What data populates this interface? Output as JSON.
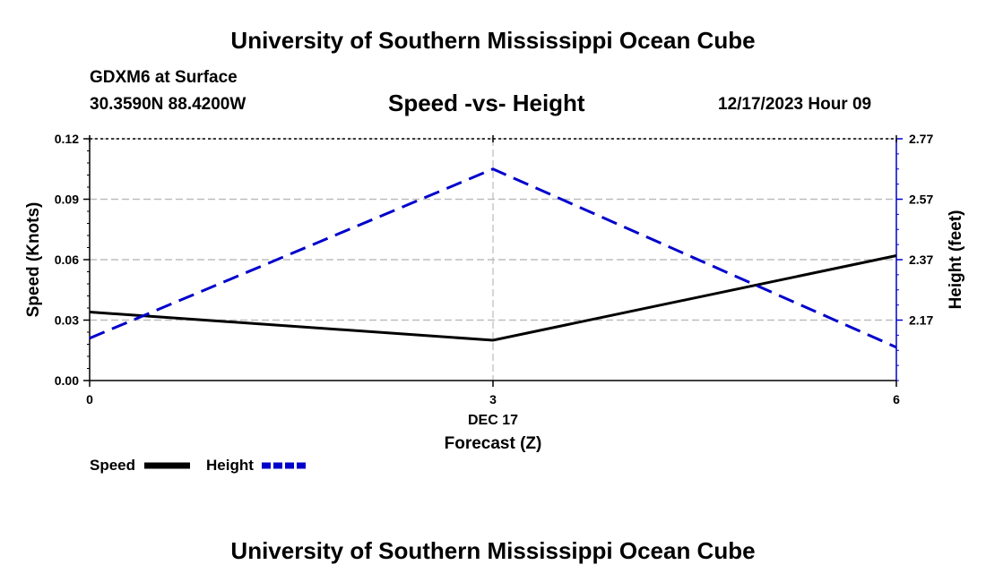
{
  "header": {
    "title_top": "University of Southern Mississippi Ocean Cube",
    "station": "GDXM6 at Surface",
    "coords": "30.3590N  88.4200W",
    "date": "12/17/2023 Hour 09",
    "title_bottom": "University of Southern Mississippi Ocean Cube"
  },
  "chart_data": {
    "type": "line",
    "title": "Speed -vs- Height",
    "xlabel": "Forecast (Z)",
    "x": [
      0,
      3,
      6
    ],
    "x_ticks": [
      "0",
      "3",
      "6"
    ],
    "x_sublabel": "DEC 17",
    "xlim": [
      0,
      6
    ],
    "ylabel_left": "Speed (Knots)",
    "ylim_left": [
      0.0,
      0.12
    ],
    "yticks_left": [
      "0.00",
      "0.03",
      "0.06",
      "0.09",
      "0.12"
    ],
    "ylabel_right": "Height (feet)",
    "ylim_right": [
      1.97,
      2.77
    ],
    "yticks_right": [
      "2.17",
      "2.37",
      "2.57",
      "2.77"
    ],
    "grid": true,
    "series": [
      {
        "name": "Speed",
        "axis": "left",
        "color": "#000000",
        "style": "solid",
        "values": [
          0.034,
          0.02,
          0.062
        ]
      },
      {
        "name": "Height",
        "axis": "right",
        "color": "#0000cc",
        "style": "dashed",
        "values": [
          2.11,
          2.67,
          2.08
        ]
      }
    ],
    "legend": [
      "Speed",
      "Height"
    ]
  }
}
